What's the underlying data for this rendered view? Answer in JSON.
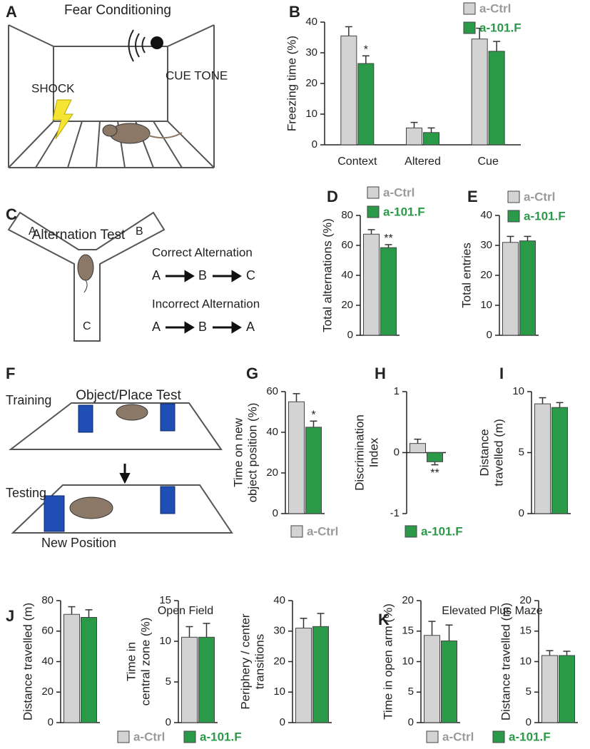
{
  "panels": {
    "letters": [
      "A",
      "B",
      "C",
      "D",
      "E",
      "F",
      "G",
      "H",
      "I",
      "J",
      "K"
    ]
  },
  "diagrams": {
    "fear": {
      "title": "Fear Conditioning",
      "shock": "SHOCK",
      "cue": "CUE TONE"
    },
    "alternation": {
      "title": "Alternation Test",
      "arms": [
        "A",
        "B",
        "C"
      ],
      "correct": "Correct Alternation",
      "correct_sequence": [
        "A",
        "B",
        "C"
      ],
      "incorrect": "Incorrect Alternation",
      "incorrect_sequence": [
        "A",
        "B",
        "A"
      ]
    },
    "object_place": {
      "title": "Object/Place Test",
      "training": "Training",
      "testing": "Testing",
      "new_position": "New Position"
    }
  },
  "group_titles": {
    "open_field": "Open Field",
    "plus_maze": "Elevated Plus Maze"
  },
  "chart_data": [
    {
      "type": "bar",
      "ylabel": [
        "Freezing time (%)"
      ],
      "categories": [
        "Context",
        "Altered",
        "Cue"
      ],
      "ylim": [
        0,
        40
      ],
      "yticks": [
        0,
        10,
        20,
        30,
        40
      ],
      "legend": "top-right",
      "series": [
        {
          "name": "a-Ctrl",
          "color": "#d3d3d3",
          "values": [
            35.5,
            5.5,
            34.5
          ],
          "errors": [
            3,
            1.8,
            3.5
          ]
        },
        {
          "name": "a-101.F",
          "color": "#2a9a48",
          "values": [
            26.5,
            4,
            30.5
          ],
          "errors": [
            2.5,
            1.5,
            3.2
          ],
          "significance": [
            "*",
            null,
            null
          ]
        }
      ]
    },
    {
      "type": "bar",
      "ylabel": [
        "Total alternations (%)"
      ],
      "ylim": [
        0,
        80
      ],
      "yticks": [
        0,
        20,
        40,
        60,
        80
      ],
      "legend": "top-right",
      "series": [
        {
          "name": "a-Ctrl",
          "color": "#d3d3d3",
          "values": [
            67.5
          ],
          "errors": [
            3
          ]
        },
        {
          "name": "a-101.F",
          "color": "#2a9a48",
          "values": [
            58.5
          ],
          "errors": [
            2
          ],
          "significance": [
            "**"
          ]
        }
      ]
    },
    {
      "type": "bar",
      "ylabel": [
        "Total entries"
      ],
      "ylim": [
        0,
        40
      ],
      "yticks": [
        0,
        10,
        20,
        30,
        40
      ],
      "legend": "top-right",
      "series": [
        {
          "name": "a-Ctrl",
          "color": "#d3d3d3",
          "values": [
            31
          ],
          "errors": [
            2
          ]
        },
        {
          "name": "a-101.F",
          "color": "#2a9a48",
          "values": [
            31.5
          ],
          "errors": [
            1.5
          ]
        }
      ]
    },
    {
      "type": "bar",
      "ylabel": [
        "Time on new",
        "object position (%)"
      ],
      "ylim": [
        0,
        60
      ],
      "yticks": [
        0,
        20,
        40,
        60
      ],
      "legend": "bottom",
      "series": [
        {
          "name": "a-Ctrl",
          "color": "#d3d3d3",
          "values": [
            55
          ],
          "errors": [
            4
          ]
        },
        {
          "name": "a-101.F",
          "color": "#2a9a48",
          "values": [
            42.5
          ],
          "errors": [
            3
          ],
          "significance": [
            "*"
          ]
        }
      ]
    },
    {
      "type": "bar",
      "ylabel": [
        "Discrimination",
        "Index"
      ],
      "ylim": [
        -1,
        1
      ],
      "yticks": [
        -1,
        0,
        1
      ],
      "series": [
        {
          "name": "a-Ctrl",
          "color": "#d3d3d3",
          "values": [
            0.15
          ],
          "errors": [
            0.07
          ]
        },
        {
          "name": "a-101.F",
          "color": "#2a9a48",
          "values": [
            -0.15
          ],
          "errors": [
            0.05
          ],
          "significance": [
            "**"
          ]
        }
      ]
    },
    {
      "type": "bar",
      "ylabel": [
        "Distance",
        "travelled (m)"
      ],
      "ylim": [
        0,
        10
      ],
      "yticks": [
        0,
        5,
        10
      ],
      "series": [
        {
          "name": "a-Ctrl",
          "color": "#d3d3d3",
          "values": [
            9
          ],
          "errors": [
            0.5
          ]
        },
        {
          "name": "a-101.F",
          "color": "#2a9a48",
          "values": [
            8.7
          ],
          "errors": [
            0.4
          ]
        }
      ]
    },
    {
      "type": "bar",
      "ylabel": [
        "Distance travelled (m)"
      ],
      "ylim": [
        0,
        80
      ],
      "yticks": [
        0,
        20,
        40,
        60,
        80
      ],
      "legend": "bottom",
      "series": [
        {
          "name": "a-Ctrl",
          "color": "#d3d3d3",
          "values": [
            71
          ],
          "errors": [
            5
          ]
        },
        {
          "name": "a-101.F",
          "color": "#2a9a48",
          "values": [
            69
          ],
          "errors": [
            5
          ]
        }
      ]
    },
    {
      "type": "bar",
      "ylabel": [
        "Time in",
        "central zone (%)"
      ],
      "ylim": [
        0,
        15
      ],
      "yticks": [
        0,
        5,
        10,
        15
      ],
      "series": [
        {
          "name": "a-Ctrl",
          "color": "#d3d3d3",
          "values": [
            10.5
          ],
          "errors": [
            1.3
          ]
        },
        {
          "name": "a-101.F",
          "color": "#2a9a48",
          "values": [
            10.5
          ],
          "errors": [
            1.7
          ]
        }
      ]
    },
    {
      "type": "bar",
      "ylabel": [
        "Periphery / center",
        "transitions"
      ],
      "ylim": [
        0,
        40
      ],
      "yticks": [
        0,
        10,
        20,
        30,
        40
      ],
      "series": [
        {
          "name": "a-Ctrl",
          "color": "#d3d3d3",
          "values": [
            31
          ],
          "errors": [
            3.2
          ]
        },
        {
          "name": "a-101.F",
          "color": "#2a9a48",
          "values": [
            31.5
          ],
          "errors": [
            4.3
          ]
        }
      ]
    },
    {
      "type": "bar",
      "ylabel": [
        "Time in open arm (%)"
      ],
      "ylim": [
        0,
        20
      ],
      "yticks": [
        0,
        5,
        10,
        15,
        20
      ],
      "legend": "bottom",
      "series": [
        {
          "name": "a-Ctrl",
          "color": "#d3d3d3",
          "values": [
            14.3
          ],
          "errors": [
            2.3
          ]
        },
        {
          "name": "a-101.F",
          "color": "#2a9a48",
          "values": [
            13.4
          ],
          "errors": [
            2.6
          ]
        }
      ]
    },
    {
      "type": "bar",
      "ylabel": [
        "Distance travelled (m)"
      ],
      "ylim": [
        0,
        20
      ],
      "yticks": [
        0,
        5,
        10,
        15,
        20
      ],
      "series": [
        {
          "name": "a-Ctrl",
          "color": "#d3d3d3",
          "values": [
            11
          ],
          "errors": [
            0.8
          ]
        },
        {
          "name": "a-101.F",
          "color": "#2a9a48",
          "values": [
            11
          ],
          "errors": [
            0.7
          ]
        }
      ]
    }
  ]
}
